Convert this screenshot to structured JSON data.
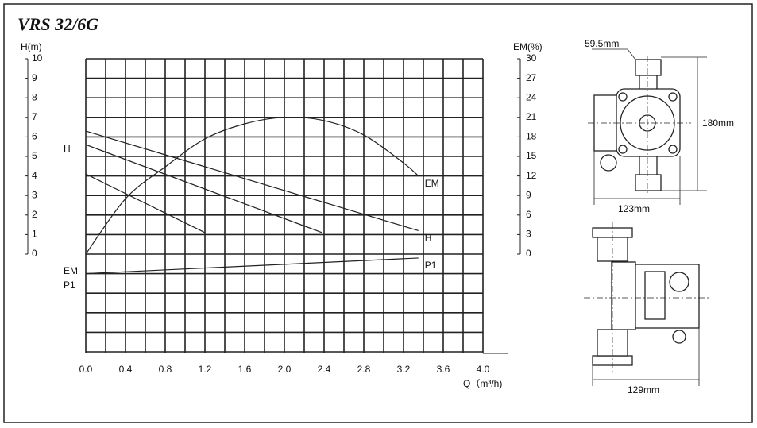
{
  "chart_data": {
    "type": "line",
    "title": "VRS 32/6G",
    "x_label": "Q（m³/h)",
    "y_label": "H(m)",
    "y2_label": "EM(%)",
    "xlim": [
      0,
      4
    ],
    "xticks": [
      {
        "value": 0,
        "label": "0.0"
      },
      0.4,
      0.8,
      1.2,
      1.6,
      {
        "value": 2,
        "label": "2.0"
      },
      2.4,
      2.8,
      3.2,
      3.6,
      {
        "value": 4,
        "label": "4.0"
      }
    ],
    "ylim": [
      0,
      10
    ],
    "yticks": [
      0,
      1,
      2,
      3,
      4,
      5,
      6,
      7,
      8,
      9,
      10
    ],
    "y2lim": [
      0,
      30
    ],
    "y2ticks": [
      0,
      3,
      6,
      9,
      12,
      15,
      18,
      21,
      24,
      27,
      30
    ],
    "grid": true,
    "start_labels": [
      "H",
      "EM",
      "P1"
    ],
    "series": [
      {
        "name": "H",
        "color": "#222222",
        "x": [
          0,
          3.35
        ],
        "values": [
          6.3,
          1.2
        ]
      },
      {
        "color": "#222222",
        "x": [
          0,
          2.38
        ],
        "values": [
          5.6,
          1.1
        ]
      },
      {
        "color": "#222222",
        "x": [
          0,
          1.2
        ],
        "values": [
          4.1,
          1.1
        ]
      },
      {
        "name": "EM",
        "color": "#222222",
        "axis": "y2",
        "x": [
          0,
          0.4,
          0.8,
          1.2,
          1.6,
          2.0,
          2.4,
          2.8,
          3.2,
          3.35
        ],
        "values": [
          0,
          8.5,
          13.4,
          17.7,
          20,
          21,
          20.5,
          18.3,
          14,
          12
        ]
      },
      {
        "name": "P1",
        "color": "#222222",
        "x": [
          0,
          3.35
        ],
        "values": [
          -1.0,
          -0.2
        ]
      }
    ]
  },
  "drawings": {
    "top_width": "59.5mm",
    "height": "180mm",
    "front_width": "123mm",
    "side_width": "129mm"
  }
}
